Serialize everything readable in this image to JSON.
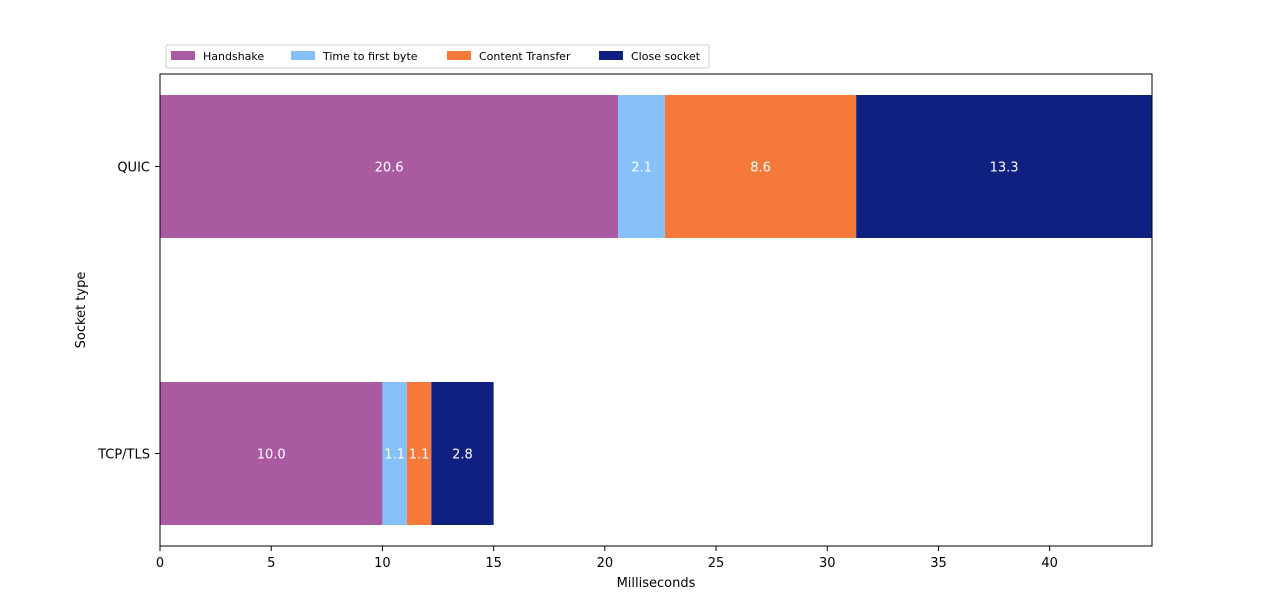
{
  "chart_data": {
    "type": "bar",
    "orientation": "horizontal",
    "stacked": true,
    "categories": [
      "QUIC",
      "TCP/TLS"
    ],
    "series": [
      {
        "name": "Handshake",
        "color": "#a95aa1",
        "values": [
          20.6,
          10.0
        ]
      },
      {
        "name": "Time to first byte",
        "color": "#85c0f9",
        "values": [
          2.1,
          1.1
        ]
      },
      {
        "name": "Content Transfer",
        "color": "#f5793a",
        "values": [
          8.6,
          1.1
        ]
      },
      {
        "name": "Close socket",
        "color": "#0f2080",
        "values": [
          13.3,
          2.8
        ]
      }
    ],
    "xlabel": "Milliseconds",
    "ylabel": "Socket type",
    "xlim": [
      0,
      44.6
    ],
    "xticks": [
      0,
      5,
      10,
      15,
      20,
      25,
      30,
      35,
      40
    ],
    "grid": false,
    "legend": "top-left outside, single row"
  }
}
